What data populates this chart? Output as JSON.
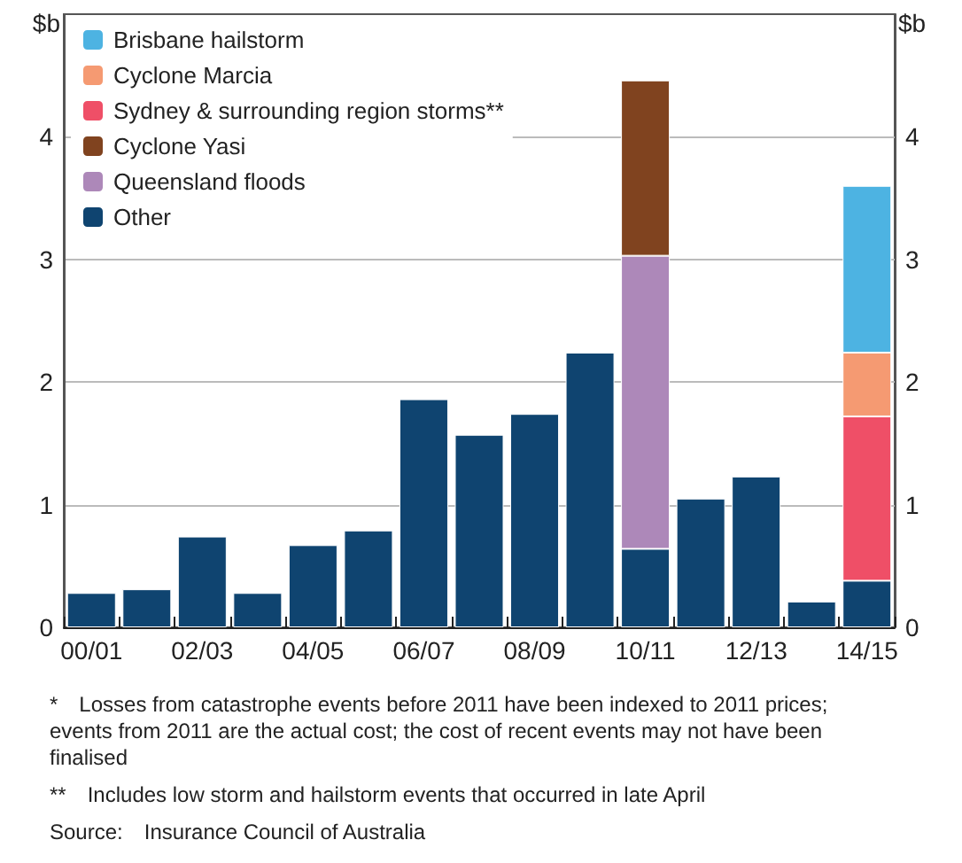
{
  "chart_data": {
    "type": "bar",
    "stacked": true,
    "ylabel": "$b",
    "y2label": "$b",
    "categories": [
      "00/01",
      null,
      "02/03",
      null,
      "04/05",
      null,
      "06/07",
      null,
      "08/09",
      null,
      "10/11",
      null,
      "12/13",
      null,
      "14/15"
    ],
    "series": [
      {
        "name": "Other",
        "color": "#0f4470",
        "values": [
          0.28,
          0.31,
          0.74,
          0.28,
          0.67,
          0.79,
          1.86,
          1.57,
          1.74,
          2.24,
          0.64,
          1.05,
          1.23,
          0.21,
          0.38
        ]
      },
      {
        "name": "Queensland floods",
        "color": "#ad88b9",
        "values": [
          null,
          null,
          null,
          null,
          null,
          null,
          null,
          null,
          null,
          null,
          2.39,
          null,
          null,
          null,
          null
        ]
      },
      {
        "name": "Cyclone Yasi",
        "color": "#80431f",
        "values": [
          null,
          null,
          null,
          null,
          null,
          null,
          null,
          null,
          null,
          null,
          1.43,
          null,
          null,
          null,
          null
        ]
      },
      {
        "name": "Sydney & surrounding region storms**",
        "color": "#ef4f67",
        "values": [
          null,
          null,
          null,
          null,
          null,
          null,
          null,
          null,
          null,
          null,
          null,
          null,
          null,
          null,
          1.34
        ]
      },
      {
        "name": "Cyclone Marcia",
        "color": "#f59a72",
        "values": [
          null,
          null,
          null,
          null,
          null,
          null,
          null,
          null,
          null,
          null,
          null,
          null,
          null,
          null,
          0.52
        ]
      },
      {
        "name": "Brisbane hailstorm",
        "color": "#4db3e2",
        "values": [
          null,
          null,
          null,
          null,
          null,
          null,
          null,
          null,
          null,
          null,
          null,
          null,
          null,
          null,
          1.36
        ]
      }
    ],
    "ylim": [
      0,
      5
    ],
    "yticks": [
      0,
      1,
      2,
      3,
      4
    ],
    "y2lim": [
      0,
      5
    ],
    "y2ticks": [
      0,
      1,
      2,
      3,
      4
    ],
    "grid": "y",
    "legend": "top left",
    "annotations": [
      "* Losses from catastrophe events before 2011 have been indexed to 2011 prices; events from 2011 are the actual cost; the cost of recent events may not have been finalised",
      "** Includes low storm and hailstorm events that occurred in late April",
      "Source: Insurance Council of Australia"
    ]
  }
}
